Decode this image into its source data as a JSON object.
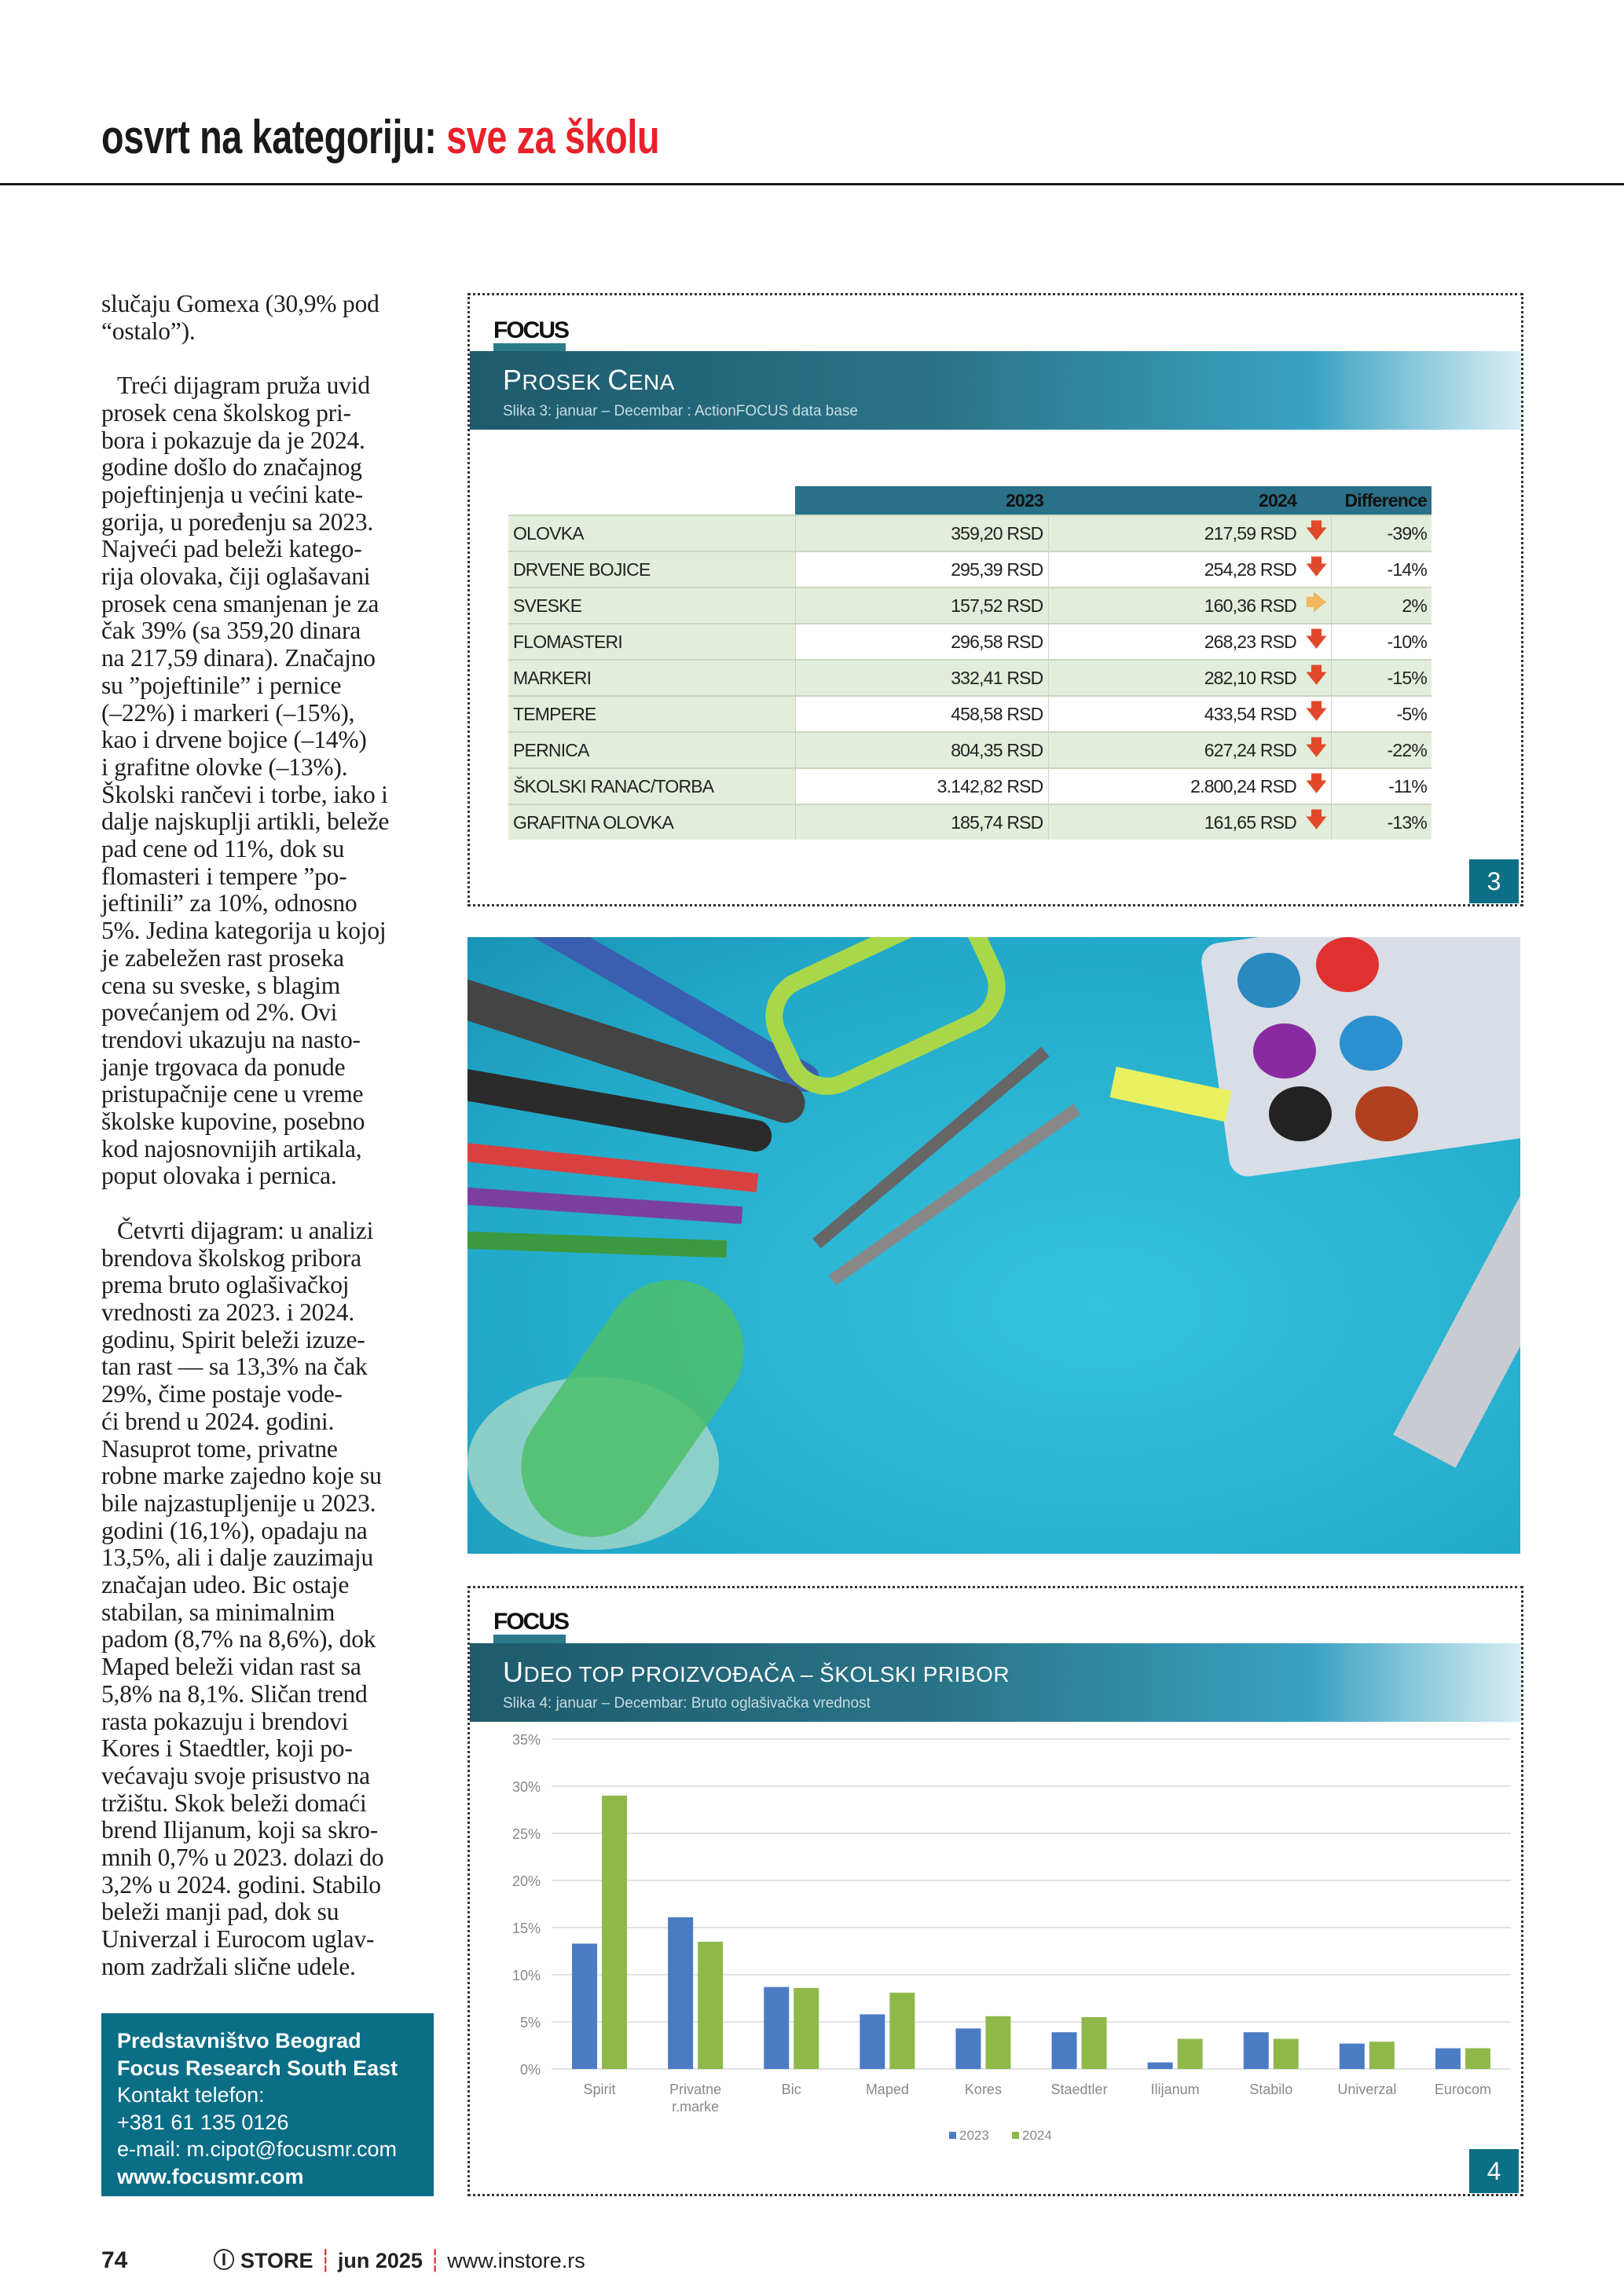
{
  "header": {
    "title_prefix": "osvrt na kategoriju:",
    "title_topic": "sve za školu"
  },
  "article": {
    "paragraphs": [
      {
        "indent": false,
        "lines": [
          "slučaju Gomexa (30,9% pod",
          "“ostalo”)."
        ]
      },
      {
        "indent": true,
        "lines": [
          "Treći dijagram pruža uvid",
          "prosek cena školskog pri-",
          "bora i pokazuje da je 2024.",
          "godine došlo do značajnog",
          "pojeftinjenja u većini kate-",
          "gorija, u poređenju sa 2023.",
          "Najveći pad beleži katego-",
          "rija olovaka, čiji oglašavani",
          "prosek cena smanjenan je za",
          "čak 39% (sa 359,20 dinara",
          "na 217,59 dinara). Značajno",
          "su ”pojeftinile” i pernice",
          "(–22%) i markeri (–15%),",
          "kao i drvene bojice (–14%)",
          "i grafitne olovke (–13%).",
          "Školski rančevi i torbe, iako i",
          "dalje najskuplji artikli, beleže",
          "pad cene od 11%, dok su",
          "flomasteri i tempere ”po-",
          "jeftinili” za 10%, odnosno",
          "5%. Jedina kategorija u kojoj",
          "je zabeležen rast proseka",
          "cena su sveske, s blagim",
          "povećanjem od 2%. Ovi",
          "trendovi ukazuju na nasto-",
          "janje trgovaca da ponude",
          "pristupačnije cene u vreme",
          "školske kupovine, posebno",
          "kod najosnovnijih artikala,",
          "poput olovaka i pernica."
        ]
      },
      {
        "indent": true,
        "lines": [
          "Četvrti dijagram: u analizi",
          "brendova školskog pribora",
          "prema bruto oglašivačkoj",
          "vrednosti za 2023. i 2024.",
          "godinu, Spirit beleži izuze-",
          "tan rast — sa 13,3% na čak",
          "29%, čime postaje vode-",
          "ći brend u 2024. godini.",
          "Nasuprot tome, privatne",
          "robne marke zajedno koje su",
          "bile najzastupljenije u 2023.",
          "godini (16,1%), opadaju na",
          "13,5%, ali i dalje zauzimaju",
          "značajan udeo. Bic ostaje",
          "stabilan, sa minimalnim",
          "padom (8,7% na 8,6%), dok",
          "Maped beleži vidan rast sa",
          "5,8% na 8,1%. Sličan trend",
          "rasta pokazuju i brendovi",
          "Kores i Staedtler, koji po-",
          "većavaju svoje prisustvo na",
          "tržištu. Skok beleži domaći",
          "brend Ilijanum, koji sa skro-",
          "mnih 0,7% u 2023. dolazi do",
          "3,2% u 2024. godini. Stabilo",
          "beleži manji pad, dok su",
          "Univerzal i Eurocom uglav-",
          "nom zadržali slične udele."
        ]
      }
    ]
  },
  "contact": {
    "line1": "Predstavništvo Beograd",
    "line2": "Focus Research South East",
    "line3": "Kontakt telefon:",
    "phone": "+381 61 135 0126",
    "email": "e-mail: m.cipot@focusmr.com",
    "web": "www.focusmr.com"
  },
  "footer": {
    "page_number": "74",
    "magazine": "STORE",
    "issue": "jun 2025",
    "website": "www.instore.rs"
  },
  "panel3": {
    "logo": "FOCUS",
    "title_first": "P",
    "title_rest": "ROSEK ",
    "title_first2": "C",
    "title_rest2": "ENA",
    "subtitle": "Slika 3: januar – Decembar : ActionFOCUS data base",
    "badge": "3",
    "table": {
      "columns": [
        "",
        "2023",
        "2024",
        "Difference"
      ],
      "rows": [
        {
          "label": "OLOVKA",
          "y2023": "359,20 RSD",
          "y2024": "217,59 RSD",
          "trend": "down",
          "diff": "-39%"
        },
        {
          "label": "DRVENE BOJICE",
          "y2023": "295,39 RSD",
          "y2024": "254,28 RSD",
          "trend": "down",
          "diff": "-14%"
        },
        {
          "label": "SVESKE",
          "y2023": "157,52 RSD",
          "y2024": "160,36 RSD",
          "trend": "flat",
          "diff": "2%"
        },
        {
          "label": "FLOMASTERI",
          "y2023": "296,58 RSD",
          "y2024": "268,23 RSD",
          "trend": "down",
          "diff": "-10%"
        },
        {
          "label": "MARKERI",
          "y2023": "332,41 RSD",
          "y2024": "282,10 RSD",
          "trend": "down",
          "diff": "-15%"
        },
        {
          "label": "TEMPERE",
          "y2023": "458,58 RSD",
          "y2024": "433,54 RSD",
          "trend": "down",
          "diff": "-5%"
        },
        {
          "label": "PERNICA",
          "y2023": "804,35 RSD",
          "y2024": "627,24 RSD",
          "trend": "down",
          "diff": "-22%"
        },
        {
          "label": "ŠKOLSKI RANAC/TORBA",
          "y2023": "3.142,82 RSD",
          "y2024": "2.800,24 RSD",
          "trend": "down",
          "diff": "-11%"
        },
        {
          "label": "GRAFITNA OLOVKA",
          "y2023": "185,74 RSD",
          "y2024": "161,65 RSD",
          "trend": "down",
          "diff": "-13%"
        }
      ]
    },
    "colors": {
      "down": "#e04a2a",
      "flat": "#f0b860"
    }
  },
  "panel4": {
    "logo": "FOCUS",
    "title_first": "U",
    "title_rest": "DEO TOP PROIZVOĐAČA – ŠKOLSKI PRIBOR",
    "subtitle": "Slika 4: januar – Decembar: Bruto oglašivačka vrednost",
    "badge": "4"
  },
  "chart_data": {
    "type": "bar",
    "categories": [
      "Spirit",
      "Privatne r.marke",
      "Bic",
      "Maped",
      "Kores",
      "Staedtler",
      "Ilijanum",
      "Stabilo",
      "Univerzal",
      "Eurocom"
    ],
    "series": [
      {
        "name": "2023",
        "color": "#4a7cc4",
        "values": [
          13.3,
          16.1,
          8.7,
          5.8,
          4.3,
          3.9,
          0.7,
          3.9,
          2.7,
          2.2
        ]
      },
      {
        "name": "2024",
        "color": "#8fb84a",
        "values": [
          29.0,
          13.5,
          8.6,
          8.1,
          5.6,
          5.5,
          3.2,
          3.2,
          2.9,
          2.2
        ]
      }
    ],
    "yticks": [
      "0%",
      "5%",
      "10%",
      "15%",
      "20%",
      "25%",
      "30%",
      "35%"
    ],
    "ylim": [
      0,
      35
    ],
    "grid": true,
    "legend": "bottom"
  },
  "colors": {
    "accent_red": "#e8202a",
    "brand_teal": "#0b6e87"
  }
}
